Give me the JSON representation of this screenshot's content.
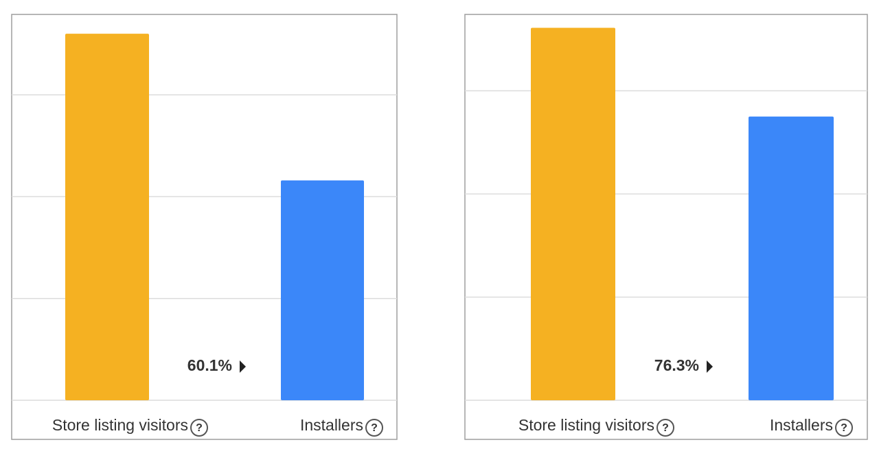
{
  "chart_data": [
    {
      "type": "bar",
      "categories": [
        "Store listing visitors",
        "Installers"
      ],
      "series": [
        {
          "name": null,
          "values": [
            3.6,
            2.16
          ]
        }
      ],
      "colors": [
        "#f5b122",
        "#3b87f9"
      ],
      "ylim": [
        0,
        3.79
      ],
      "yticks": [
        0,
        1,
        2,
        3
      ],
      "grid": true,
      "annotation": "60.1%"
    },
    {
      "type": "bar",
      "categories": [
        "Store listing visitors",
        "Installers"
      ],
      "series": [
        {
          "name": null,
          "values": [
            3.61,
            2.75
          ]
        }
      ],
      "colors": [
        "#f5b122",
        "#3b87f9"
      ],
      "ylim": [
        0,
        3.74
      ],
      "yticks": [
        0,
        1,
        2,
        3
      ],
      "grid": true,
      "annotation": "76.3%"
    }
  ]
}
